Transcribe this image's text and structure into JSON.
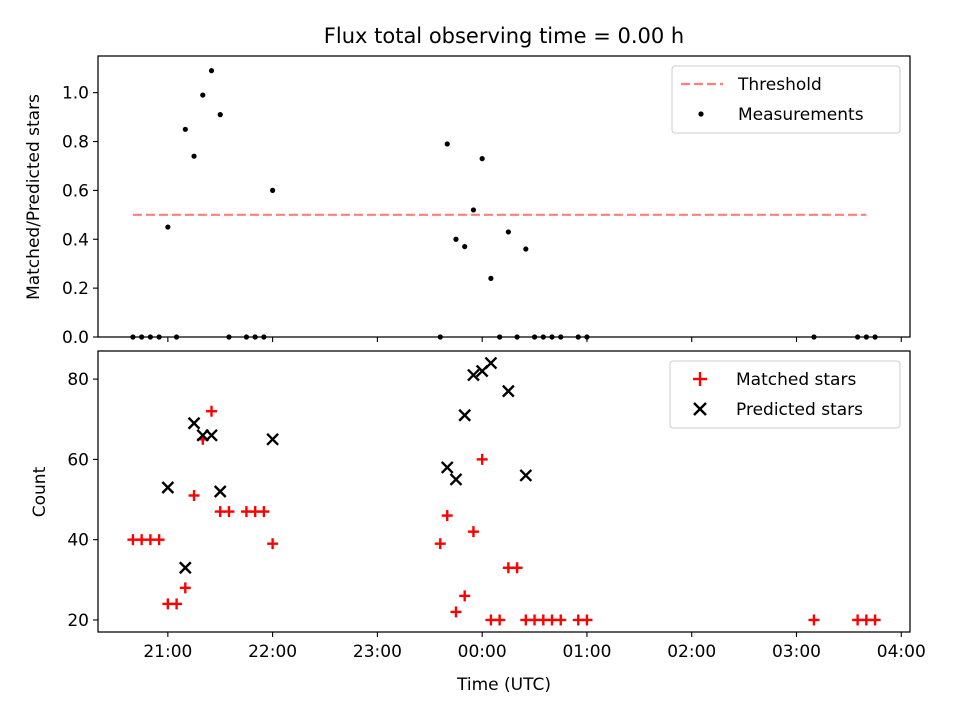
{
  "figure": {
    "title": "Flux total observing time = 0.00 h",
    "xlabel": "Time (UTC)",
    "x_tick_labels": [
      "21:00",
      "22:00",
      "23:00",
      "00:00",
      "01:00",
      "02:00",
      "03:00",
      "04:00"
    ]
  },
  "chart_data": [
    {
      "type": "scatter",
      "panel": "top",
      "ylabel": "Matched/Predicted stars",
      "ylim": [
        0,
        1.15
      ],
      "yticks": [
        "0.0",
        "0.2",
        "0.4",
        "0.6",
        "0.8",
        "1.0"
      ],
      "xlim": [
        "20:20",
        "04:05"
      ],
      "threshold": {
        "name": "Threshold",
        "value": 0.5,
        "x_start": "20:40",
        "x_end": "03:40",
        "color": "#ff7f7f",
        "style": "dashed"
      },
      "series": [
        {
          "name": "Measurements",
          "color": "#000000",
          "marker": "dot",
          "points": [
            [
              "20:40",
              0.0
            ],
            [
              "20:45",
              0.0
            ],
            [
              "20:50",
              0.0
            ],
            [
              "20:55",
              0.0
            ],
            [
              "21:00",
              0.45
            ],
            [
              "21:05",
              0.0
            ],
            [
              "21:10",
              0.85
            ],
            [
              "21:15",
              0.74
            ],
            [
              "21:20",
              0.99
            ],
            [
              "21:25",
              1.09
            ],
            [
              "21:30",
              0.91
            ],
            [
              "21:35",
              0.0
            ],
            [
              "21:45",
              0.0
            ],
            [
              "21:50",
              0.0
            ],
            [
              "21:55",
              0.0
            ],
            [
              "22:00",
              0.6
            ],
            [
              "23:36",
              0.0
            ],
            [
              "23:40",
              0.79
            ],
            [
              "23:45",
              0.4
            ],
            [
              "23:50",
              0.37
            ],
            [
              "23:55",
              0.52
            ],
            [
              "00:00",
              0.73
            ],
            [
              "00:05",
              0.24
            ],
            [
              "00:10",
              0.0
            ],
            [
              "00:15",
              0.43
            ],
            [
              "00:20",
              0.0
            ],
            [
              "00:25",
              0.36
            ],
            [
              "00:30",
              0.0
            ],
            [
              "00:35",
              0.0
            ],
            [
              "00:40",
              0.0
            ],
            [
              "00:45",
              0.0
            ],
            [
              "00:55",
              0.0
            ],
            [
              "01:00",
              0.0
            ],
            [
              "03:10",
              0.0
            ],
            [
              "03:35",
              0.0
            ],
            [
              "03:40",
              0.0
            ],
            [
              "03:45",
              0.0
            ]
          ]
        }
      ],
      "legend": {
        "position": "upper right",
        "entries": [
          "Threshold",
          "Measurements"
        ]
      }
    },
    {
      "type": "scatter",
      "panel": "bottom",
      "ylabel": "Count",
      "ylim": [
        17,
        87
      ],
      "yticks": [
        "20",
        "40",
        "60",
        "80"
      ],
      "xlim": [
        "20:20",
        "04:05"
      ],
      "series": [
        {
          "name": "Matched stars",
          "color": "#ff0000",
          "marker": "plus",
          "points": [
            [
              "20:40",
              40
            ],
            [
              "20:45",
              40
            ],
            [
              "20:50",
              40
            ],
            [
              "20:55",
              40
            ],
            [
              "21:00",
              24
            ],
            [
              "21:05",
              24
            ],
            [
              "21:10",
              28
            ],
            [
              "21:15",
              51
            ],
            [
              "21:20",
              65
            ],
            [
              "21:25",
              72
            ],
            [
              "21:30",
              47
            ],
            [
              "21:35",
              47
            ],
            [
              "21:45",
              47
            ],
            [
              "21:50",
              47
            ],
            [
              "21:55",
              47
            ],
            [
              "22:00",
              39
            ],
            [
              "23:36",
              39
            ],
            [
              "23:40",
              46
            ],
            [
              "23:45",
              22
            ],
            [
              "23:50",
              26
            ],
            [
              "23:55",
              42
            ],
            [
              "00:00",
              60
            ],
            [
              "00:05",
              20
            ],
            [
              "00:10",
              20
            ],
            [
              "00:15",
              33
            ],
            [
              "00:20",
              33
            ],
            [
              "00:25",
              20
            ],
            [
              "00:30",
              20
            ],
            [
              "00:35",
              20
            ],
            [
              "00:40",
              20
            ],
            [
              "00:45",
              20
            ],
            [
              "00:55",
              20
            ],
            [
              "01:00",
              20
            ],
            [
              "03:10",
              20
            ],
            [
              "03:35",
              20
            ],
            [
              "03:40",
              20
            ],
            [
              "03:45",
              20
            ]
          ]
        },
        {
          "name": "Predicted stars",
          "color": "#000000",
          "marker": "x",
          "points": [
            [
              "21:00",
              53
            ],
            [
              "21:10",
              33
            ],
            [
              "21:15",
              69
            ],
            [
              "21:20",
              66
            ],
            [
              "21:25",
              66
            ],
            [
              "21:30",
              52
            ],
            [
              "22:00",
              65
            ],
            [
              "23:40",
              58
            ],
            [
              "23:45",
              55
            ],
            [
              "23:50",
              71
            ],
            [
              "23:55",
              81
            ],
            [
              "00:00",
              82
            ],
            [
              "00:05",
              84
            ],
            [
              "00:15",
              77
            ],
            [
              "00:25",
              56
            ]
          ]
        }
      ],
      "legend": {
        "position": "upper right",
        "entries": [
          "Matched stars",
          "Predicted stars"
        ]
      }
    }
  ]
}
